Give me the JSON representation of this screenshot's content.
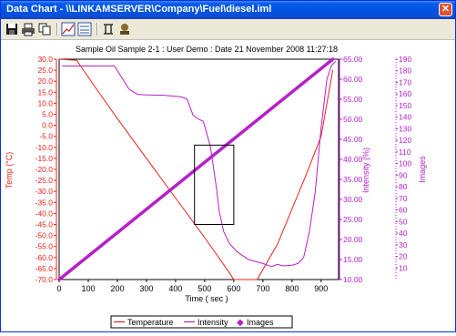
{
  "window": {
    "title": "Data Chart - \\\\LINKAMSERVER\\Company\\Fuel\\diesel.iml",
    "close_glyph": "✕"
  },
  "toolbar": {
    "buttons": [
      "save-icon",
      "print-icon",
      "copy-icon",
      "zoom-chart-icon",
      "chart-options-icon",
      "axis-icon",
      "images-icon"
    ]
  },
  "colors": {
    "temperature": "#e8221a",
    "intensity": "#b520c8",
    "images": "#b520c8",
    "title_bar": "#0054e3"
  },
  "chart_data": {
    "type": "line",
    "title": "Sample Oil Sample 2-1 : User Demo : Date 21 November 2008 11:27:18",
    "xlabel": "Time ( sec )",
    "xlim": [
      0,
      960
    ],
    "xticks": [
      "0",
      "100",
      "200",
      "300",
      "400",
      "500",
      "600",
      "700",
      "800",
      "900"
    ],
    "axes": {
      "temp": {
        "label": "Temp (°C)",
        "lim": [
          -70,
          30
        ],
        "ticks": [
          "30.0",
          "25.0",
          "20.0",
          "15.0",
          "10.0",
          "5.0",
          "0.0",
          "-5.0",
          "-10.0",
          "-15.0",
          "-20.0",
          "-25.0",
          "-30.0",
          "-35.0",
          "-40.0",
          "-45.0",
          "-50.0",
          "-55.0",
          "-60.0",
          "-65.0",
          "-70.0"
        ]
      },
      "intensity": {
        "label": "Intensity (%)",
        "lim": [
          10,
          65
        ],
        "ticks": [
          "65.00",
          "60.00",
          "55.00",
          "50.00",
          "45.00",
          "40.00",
          "35.00",
          "30.00",
          "25.00",
          "20.00",
          "15.00",
          "10.00"
        ]
      },
      "images": {
        "label": "Images",
        "lim": [
          0,
          190
        ],
        "ticks": [
          "190",
          "180",
          "170",
          "160",
          "150",
          "140",
          "130",
          "120",
          "110",
          "100",
          "90",
          "80",
          "70",
          "60",
          "50",
          "40",
          "30",
          "20",
          "10"
        ]
      }
    },
    "series": [
      {
        "name": "Temperature",
        "axis": "temp",
        "points": [
          [
            0,
            30
          ],
          [
            60,
            29.5
          ],
          [
            120,
            18
          ],
          [
            200,
            3
          ],
          [
            300,
            -15
          ],
          [
            400,
            -33
          ],
          [
            500,
            -51
          ],
          [
            580,
            -66
          ],
          [
            600,
            -70
          ],
          [
            680,
            -70
          ],
          [
            750,
            -54
          ],
          [
            800,
            -38
          ],
          [
            850,
            -22
          ],
          [
            900,
            -5
          ],
          [
            940,
            25
          ]
        ]
      },
      {
        "name": "Intensity",
        "axis": "intensity",
        "points": [
          [
            10,
            63.3
          ],
          [
            100,
            63.3
          ],
          [
            190,
            63.3
          ],
          [
            210,
            61
          ],
          [
            240,
            57.5
          ],
          [
            270,
            56.2
          ],
          [
            300,
            56.1
          ],
          [
            360,
            56
          ],
          [
            420,
            55.6
          ],
          [
            440,
            55
          ],
          [
            460,
            51
          ],
          [
            480,
            50
          ],
          [
            495,
            49.5
          ],
          [
            505,
            47
          ],
          [
            520,
            43
          ],
          [
            530,
            38
          ],
          [
            540,
            33
          ],
          [
            550,
            27
          ],
          [
            565,
            22
          ],
          [
            585,
            19
          ],
          [
            610,
            17
          ],
          [
            650,
            15
          ],
          [
            700,
            14
          ],
          [
            730,
            13.2
          ],
          [
            750,
            13.8
          ],
          [
            770,
            13.4
          ],
          [
            800,
            13.6
          ],
          [
            820,
            14
          ],
          [
            840,
            15.5
          ],
          [
            860,
            22
          ],
          [
            880,
            32
          ],
          [
            900,
            48
          ],
          [
            920,
            60
          ],
          [
            935,
            63.3
          ],
          [
            950,
            64.5
          ]
        ]
      },
      {
        "name": "Images",
        "axis": "images",
        "points": [
          [
            0,
            0
          ],
          [
            940,
            190
          ]
        ]
      }
    ],
    "zoom_box": {
      "x": [
        465,
        600
      ],
      "temp": [
        -45,
        -9
      ]
    },
    "legend": [
      "Temperature",
      "Intensity",
      "Images"
    ],
    "legend_placement": "bottom-center",
    "grid": false
  }
}
